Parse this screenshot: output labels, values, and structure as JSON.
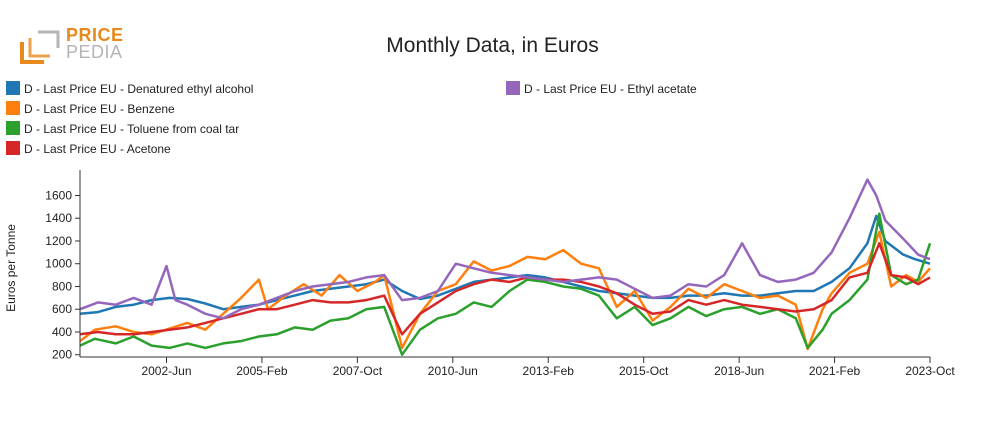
{
  "logo": {
    "line1": "PRICE",
    "line2": "PEDIA",
    "icon": "pricepedia-bracket-logo",
    "accent": "#e8891c",
    "muted": "#b5b5b5"
  },
  "legend": [
    {
      "label": "D - Last Price EU - Denatured ethyl alcohol",
      "color": "#1f77b4"
    },
    {
      "label": "D - Last Price EU - Benzene",
      "color": "#ff7f0e"
    },
    {
      "label": "D - Last Price EU - Toluene from coal tar",
      "color": "#2ca02c"
    },
    {
      "label": "D - Last Price EU - Acetone",
      "color": "#d62728"
    },
    {
      "label": "D - Last Price EU - Ethyl acetate",
      "color": "#9467bd"
    }
  ],
  "chart_data": {
    "type": "line",
    "title": "Monthly Data, in Euros",
    "xlabel": "",
    "ylabel": "Euros per Tonne",
    "x_start": "2000-01",
    "x_end": "2023-10",
    "ylim": [
      180,
      1780
    ],
    "yticks": [
      200,
      400,
      600,
      800,
      1000,
      1200,
      1400,
      1600
    ],
    "xticks": [
      {
        "label": "2002-Jun",
        "date": "2002-06"
      },
      {
        "label": "2005-Feb",
        "date": "2005-02"
      },
      {
        "label": "2007-Oct",
        "date": "2007-10"
      },
      {
        "label": "2010-Jun",
        "date": "2010-06"
      },
      {
        "label": "2013-Feb",
        "date": "2013-02"
      },
      {
        "label": "2015-Oct",
        "date": "2015-10"
      },
      {
        "label": "2018-Jun",
        "date": "2018-06"
      },
      {
        "label": "2021-Feb",
        "date": "2021-02"
      },
      {
        "label": "2023-Oct",
        "date": "2023-10"
      }
    ],
    "grid": false,
    "legend_position": "top-left",
    "series": [
      {
        "name": "D - Last Price EU - Denatured ethyl alcohol",
        "color": "#1f77b4",
        "points": [
          [
            "2000-01",
            560
          ],
          [
            "2000-07",
            575
          ],
          [
            "2001-01",
            620
          ],
          [
            "2001-07",
            640
          ],
          [
            "2002-01",
            680
          ],
          [
            "2002-07",
            700
          ],
          [
            "2003-01",
            690
          ],
          [
            "2003-07",
            650
          ],
          [
            "2004-01",
            600
          ],
          [
            "2004-07",
            620
          ],
          [
            "2005-01",
            640
          ],
          [
            "2005-07",
            680
          ],
          [
            "2006-01",
            720
          ],
          [
            "2006-07",
            760
          ],
          [
            "2007-01",
            780
          ],
          [
            "2007-07",
            800
          ],
          [
            "2008-01",
            820
          ],
          [
            "2008-07",
            860
          ],
          [
            "2009-01",
            760
          ],
          [
            "2009-07",
            690
          ],
          [
            "2010-01",
            720
          ],
          [
            "2010-07",
            780
          ],
          [
            "2011-01",
            840
          ],
          [
            "2011-07",
            860
          ],
          [
            "2012-01",
            880
          ],
          [
            "2012-07",
            900
          ],
          [
            "2013-01",
            880
          ],
          [
            "2013-07",
            840
          ],
          [
            "2014-01",
            800
          ],
          [
            "2014-07",
            760
          ],
          [
            "2015-01",
            740
          ],
          [
            "2015-07",
            720
          ],
          [
            "2016-01",
            700
          ],
          [
            "2016-07",
            700
          ],
          [
            "2017-01",
            720
          ],
          [
            "2017-07",
            720
          ],
          [
            "2018-01",
            740
          ],
          [
            "2018-07",
            720
          ],
          [
            "2019-01",
            720
          ],
          [
            "2019-07",
            740
          ],
          [
            "2020-01",
            760
          ],
          [
            "2020-07",
            760
          ],
          [
            "2021-01",
            840
          ],
          [
            "2021-07",
            960
          ],
          [
            "2022-01",
            1180
          ],
          [
            "2022-04",
            1420
          ],
          [
            "2022-07",
            1200
          ],
          [
            "2023-01",
            1080
          ],
          [
            "2023-05",
            1040
          ],
          [
            "2023-10",
            1000
          ]
        ]
      },
      {
        "name": "D - Last Price EU - Benzene",
        "color": "#ff7f0e",
        "points": [
          [
            "2000-01",
            320
          ],
          [
            "2000-06",
            420
          ],
          [
            "2001-01",
            450
          ],
          [
            "2001-07",
            400
          ],
          [
            "2002-01",
            380
          ],
          [
            "2002-07",
            430
          ],
          [
            "2003-01",
            480
          ],
          [
            "2003-07",
            420
          ],
          [
            "2004-01",
            560
          ],
          [
            "2004-07",
            700
          ],
          [
            "2005-01",
            860
          ],
          [
            "2005-04",
            600
          ],
          [
            "2005-10",
            720
          ],
          [
            "2006-04",
            820
          ],
          [
            "2006-10",
            720
          ],
          [
            "2007-04",
            900
          ],
          [
            "2007-10",
            760
          ],
          [
            "2008-04",
            840
          ],
          [
            "2008-07",
            900
          ],
          [
            "2009-01",
            260
          ],
          [
            "2009-07",
            560
          ],
          [
            "2010-01",
            760
          ],
          [
            "2010-07",
            820
          ],
          [
            "2011-01",
            1020
          ],
          [
            "2011-07",
            940
          ],
          [
            "2012-01",
            980
          ],
          [
            "2012-07",
            1060
          ],
          [
            "2013-01",
            1040
          ],
          [
            "2013-07",
            1120
          ],
          [
            "2014-01",
            1000
          ],
          [
            "2014-07",
            960
          ],
          [
            "2015-01",
            620
          ],
          [
            "2015-07",
            760
          ],
          [
            "2016-01",
            500
          ],
          [
            "2016-07",
            620
          ],
          [
            "2017-01",
            780
          ],
          [
            "2017-07",
            700
          ],
          [
            "2018-01",
            820
          ],
          [
            "2018-07",
            760
          ],
          [
            "2019-01",
            700
          ],
          [
            "2019-07",
            720
          ],
          [
            "2020-01",
            640
          ],
          [
            "2020-05",
            250
          ],
          [
            "2020-10",
            600
          ],
          [
            "2021-01",
            740
          ],
          [
            "2021-07",
            920
          ],
          [
            "2022-01",
            1000
          ],
          [
            "2022-05",
            1280
          ],
          [
            "2022-09",
            800
          ],
          [
            "2023-02",
            900
          ],
          [
            "2023-06",
            840
          ],
          [
            "2023-10",
            960
          ]
        ]
      },
      {
        "name": "D - Last Price EU - Toluene from coal tar",
        "color": "#2ca02c",
        "points": [
          [
            "2000-01",
            280
          ],
          [
            "2000-06",
            340
          ],
          [
            "2001-01",
            300
          ],
          [
            "2001-07",
            360
          ],
          [
            "2002-01",
            280
          ],
          [
            "2002-07",
            260
          ],
          [
            "2003-01",
            300
          ],
          [
            "2003-07",
            260
          ],
          [
            "2004-01",
            300
          ],
          [
            "2004-07",
            320
          ],
          [
            "2005-01",
            360
          ],
          [
            "2005-07",
            380
          ],
          [
            "2006-01",
            440
          ],
          [
            "2006-07",
            420
          ],
          [
            "2007-01",
            500
          ],
          [
            "2007-07",
            520
          ],
          [
            "2008-01",
            600
          ],
          [
            "2008-07",
            620
          ],
          [
            "2009-01",
            200
          ],
          [
            "2009-07",
            420
          ],
          [
            "2010-01",
            520
          ],
          [
            "2010-07",
            560
          ],
          [
            "2011-01",
            660
          ],
          [
            "2011-07",
            620
          ],
          [
            "2012-01",
            760
          ],
          [
            "2012-07",
            860
          ],
          [
            "2013-01",
            840
          ],
          [
            "2013-07",
            800
          ],
          [
            "2014-01",
            780
          ],
          [
            "2014-07",
            720
          ],
          [
            "2015-01",
            520
          ],
          [
            "2015-07",
            620
          ],
          [
            "2016-01",
            460
          ],
          [
            "2016-07",
            520
          ],
          [
            "2017-01",
            620
          ],
          [
            "2017-07",
            540
          ],
          [
            "2018-01",
            600
          ],
          [
            "2018-07",
            620
          ],
          [
            "2019-01",
            560
          ],
          [
            "2019-07",
            600
          ],
          [
            "2020-01",
            520
          ],
          [
            "2020-05",
            260
          ],
          [
            "2020-10",
            420
          ],
          [
            "2021-01",
            560
          ],
          [
            "2021-07",
            680
          ],
          [
            "2022-01",
            860
          ],
          [
            "2022-05",
            1440
          ],
          [
            "2022-09",
            900
          ],
          [
            "2023-02",
            820
          ],
          [
            "2023-06",
            860
          ],
          [
            "2023-10",
            1180
          ]
        ]
      },
      {
        "name": "D - Last Price EU - Acetone",
        "color": "#d62728",
        "points": [
          [
            "2000-01",
            380
          ],
          [
            "2000-07",
            400
          ],
          [
            "2001-01",
            380
          ],
          [
            "2001-07",
            380
          ],
          [
            "2002-01",
            400
          ],
          [
            "2002-07",
            420
          ],
          [
            "2003-01",
            440
          ],
          [
            "2003-07",
            480
          ],
          [
            "2004-01",
            520
          ],
          [
            "2004-07",
            560
          ],
          [
            "2005-01",
            600
          ],
          [
            "2005-07",
            600
          ],
          [
            "2006-01",
            640
          ],
          [
            "2006-07",
            680
          ],
          [
            "2007-01",
            660
          ],
          [
            "2007-07",
            660
          ],
          [
            "2008-01",
            680
          ],
          [
            "2008-07",
            720
          ],
          [
            "2009-01",
            380
          ],
          [
            "2009-07",
            560
          ],
          [
            "2010-01",
            660
          ],
          [
            "2010-07",
            760
          ],
          [
            "2011-01",
            820
          ],
          [
            "2011-07",
            860
          ],
          [
            "2012-01",
            840
          ],
          [
            "2012-07",
            880
          ],
          [
            "2013-01",
            860
          ],
          [
            "2013-07",
            860
          ],
          [
            "2014-01",
            840
          ],
          [
            "2014-07",
            800
          ],
          [
            "2015-01",
            740
          ],
          [
            "2015-07",
            640
          ],
          [
            "2016-01",
            560
          ],
          [
            "2016-07",
            580
          ],
          [
            "2017-01",
            680
          ],
          [
            "2017-07",
            640
          ],
          [
            "2018-01",
            680
          ],
          [
            "2018-07",
            640
          ],
          [
            "2019-01",
            620
          ],
          [
            "2019-07",
            600
          ],
          [
            "2020-01",
            580
          ],
          [
            "2020-07",
            600
          ],
          [
            "2021-01",
            680
          ],
          [
            "2021-07",
            880
          ],
          [
            "2022-01",
            920
          ],
          [
            "2022-05",
            1180
          ],
          [
            "2022-09",
            900
          ],
          [
            "2023-02",
            880
          ],
          [
            "2023-06",
            820
          ],
          [
            "2023-10",
            880
          ]
        ]
      },
      {
        "name": "D - Last Price EU - Ethyl acetate",
        "color": "#9467bd",
        "points": [
          [
            "2000-01",
            600
          ],
          [
            "2000-07",
            660
          ],
          [
            "2001-01",
            640
          ],
          [
            "2001-07",
            700
          ],
          [
            "2002-01",
            640
          ],
          [
            "2002-06",
            980
          ],
          [
            "2002-09",
            680
          ],
          [
            "2003-01",
            640
          ],
          [
            "2003-07",
            560
          ],
          [
            "2004-01",
            520
          ],
          [
            "2004-07",
            600
          ],
          [
            "2005-01",
            640
          ],
          [
            "2005-07",
            700
          ],
          [
            "2006-01",
            760
          ],
          [
            "2006-07",
            800
          ],
          [
            "2007-01",
            820
          ],
          [
            "2007-07",
            840
          ],
          [
            "2008-01",
            880
          ],
          [
            "2008-07",
            900
          ],
          [
            "2009-01",
            680
          ],
          [
            "2009-07",
            700
          ],
          [
            "2010-01",
            760
          ],
          [
            "2010-07",
            1000
          ],
          [
            "2011-01",
            960
          ],
          [
            "2011-07",
            920
          ],
          [
            "2012-01",
            900
          ],
          [
            "2012-07",
            880
          ],
          [
            "2013-01",
            860
          ],
          [
            "2013-07",
            840
          ],
          [
            "2014-01",
            860
          ],
          [
            "2014-07",
            880
          ],
          [
            "2015-01",
            860
          ],
          [
            "2015-07",
            780
          ],
          [
            "2016-01",
            700
          ],
          [
            "2016-07",
            720
          ],
          [
            "2017-01",
            820
          ],
          [
            "2017-07",
            800
          ],
          [
            "2018-01",
            900
          ],
          [
            "2018-07",
            1180
          ],
          [
            "2019-01",
            900
          ],
          [
            "2019-07",
            840
          ],
          [
            "2020-01",
            860
          ],
          [
            "2020-07",
            920
          ],
          [
            "2021-01",
            1100
          ],
          [
            "2021-07",
            1400
          ],
          [
            "2022-01",
            1740
          ],
          [
            "2022-04",
            1600
          ],
          [
            "2022-07",
            1380
          ],
          [
            "2023-01",
            1220
          ],
          [
            "2023-06",
            1080
          ],
          [
            "2023-10",
            1040
          ]
        ]
      }
    ]
  }
}
